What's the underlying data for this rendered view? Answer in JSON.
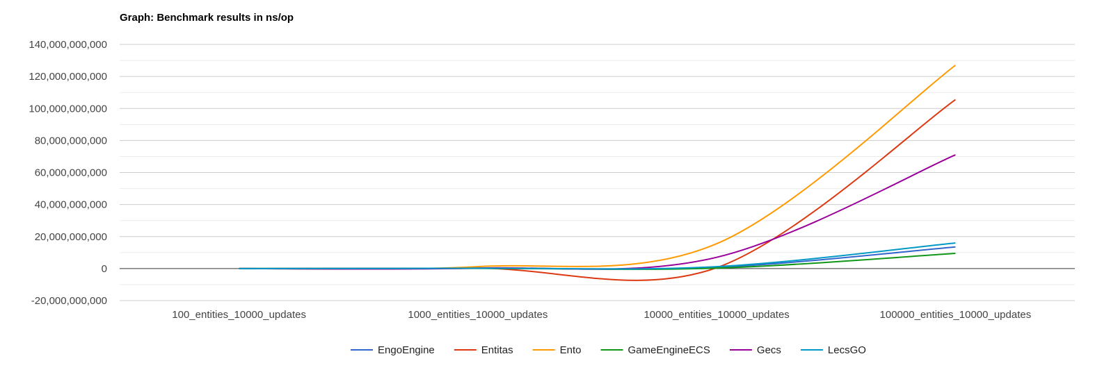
{
  "chart_data": {
    "type": "line",
    "title": "Graph: Benchmark results in ns/op",
    "xlabel": "",
    "ylabel": "",
    "categories": [
      "100_entities_10000_updates",
      "1000_entities_10000_updates",
      "10000_entities_10000_updates",
      "100000_entities_10000_updates"
    ],
    "ylim": [
      -20000000000,
      140000000000
    ],
    "yticks": [
      -20000000000,
      0,
      20000000000,
      40000000000,
      60000000000,
      80000000000,
      100000000000,
      120000000000,
      140000000000
    ],
    "ytick_labels": [
      "-20,000,000,000",
      "0",
      "20,000,000,000",
      "40,000,000,000",
      "60,000,000,000",
      "80,000,000,000",
      "100,000,000,000",
      "120,000,000,000",
      "140,000,000,000"
    ],
    "grid": true,
    "legend_position": "bottom",
    "smooth": true,
    "series": [
      {
        "name": "EngoEngine",
        "color": "#3366cc",
        "values": [
          0,
          200000000,
          800000000,
          13500000000
        ]
      },
      {
        "name": "Entitas",
        "color": "#dc3912",
        "values": [
          0,
          200000000,
          500000000,
          105500000000
        ]
      },
      {
        "name": "Ento",
        "color": "#ff9900",
        "values": [
          0,
          1200000000,
          15500000000,
          127000000000
        ]
      },
      {
        "name": "GameEngineECS",
        "color": "#109618",
        "values": [
          0,
          100000000,
          300000000,
          9500000000
        ]
      },
      {
        "name": "Gecs",
        "color": "#990099",
        "values": [
          0,
          300000000,
          7000000000,
          71000000000
        ]
      },
      {
        "name": "LecsGO",
        "color": "#0099c6",
        "values": [
          0,
          200000000,
          1200000000,
          16000000000
        ]
      }
    ]
  }
}
